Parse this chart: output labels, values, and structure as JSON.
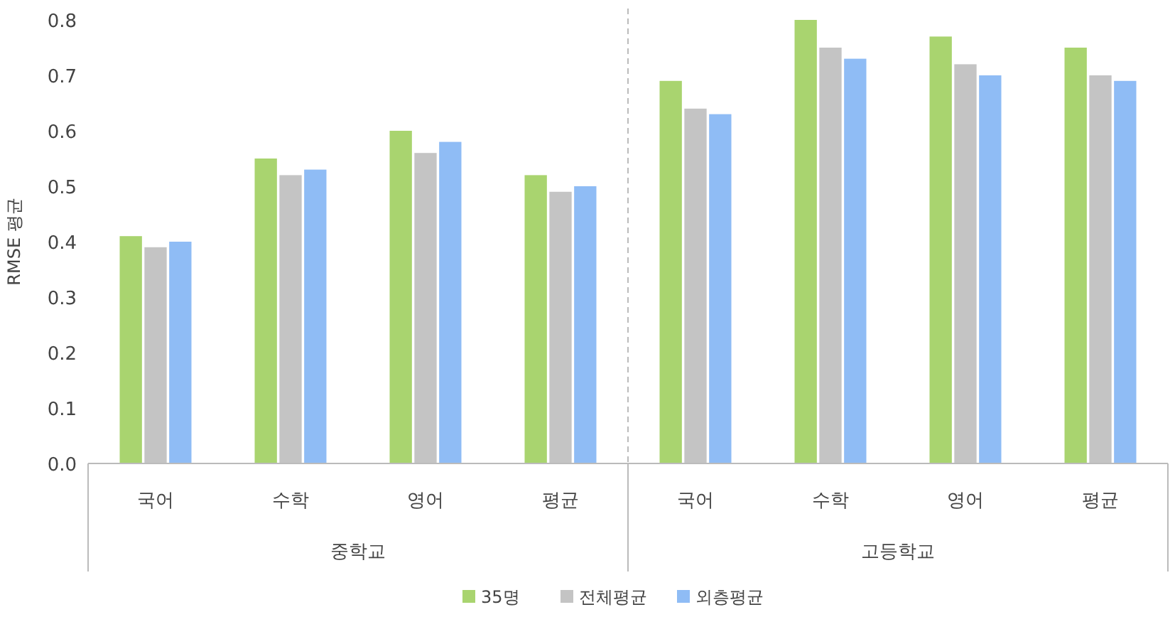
{
  "chart_data": {
    "type": "bar",
    "ylabel": "RMSE 평균",
    "categories": [
      "국어",
      "수학",
      "영어",
      "평균",
      "국어",
      "수학",
      "영어",
      "평균"
    ],
    "annotations": [
      "중학교",
      "고등학교"
    ],
    "series": [
      {
        "name": "35명",
        "color": "#a9d46f",
        "values": [
          0.41,
          0.55,
          0.6,
          0.52,
          0.69,
          0.8,
          0.77,
          0.75
        ]
      },
      {
        "name": "전체평균",
        "color": "#c4c4c4",
        "values": [
          0.39,
          0.52,
          0.56,
          0.49,
          0.64,
          0.75,
          0.72,
          0.7
        ]
      },
      {
        "name": "외층평균",
        "color": "#8fbcf5",
        "values": [
          0.4,
          0.53,
          0.58,
          0.5,
          0.63,
          0.73,
          0.7,
          0.69
        ]
      }
    ],
    "ylim": [
      0,
      0.8
    ],
    "yticks": [
      {
        "value": 0,
        "label": "0.0"
      },
      {
        "value": 0.1,
        "label": "0.1"
      },
      {
        "value": 0.2,
        "label": "0.2"
      },
      {
        "value": 0.3,
        "label": "0.3"
      },
      {
        "value": 0.4,
        "label": "0.4"
      },
      {
        "value": 0.5,
        "label": "0.5"
      },
      {
        "value": 0.6,
        "label": "0.6"
      },
      {
        "value": 0.7,
        "label": "0.7"
      },
      {
        "value": 0.8,
        "label": "0.8"
      }
    ],
    "grid": false,
    "legend": "bottom"
  }
}
